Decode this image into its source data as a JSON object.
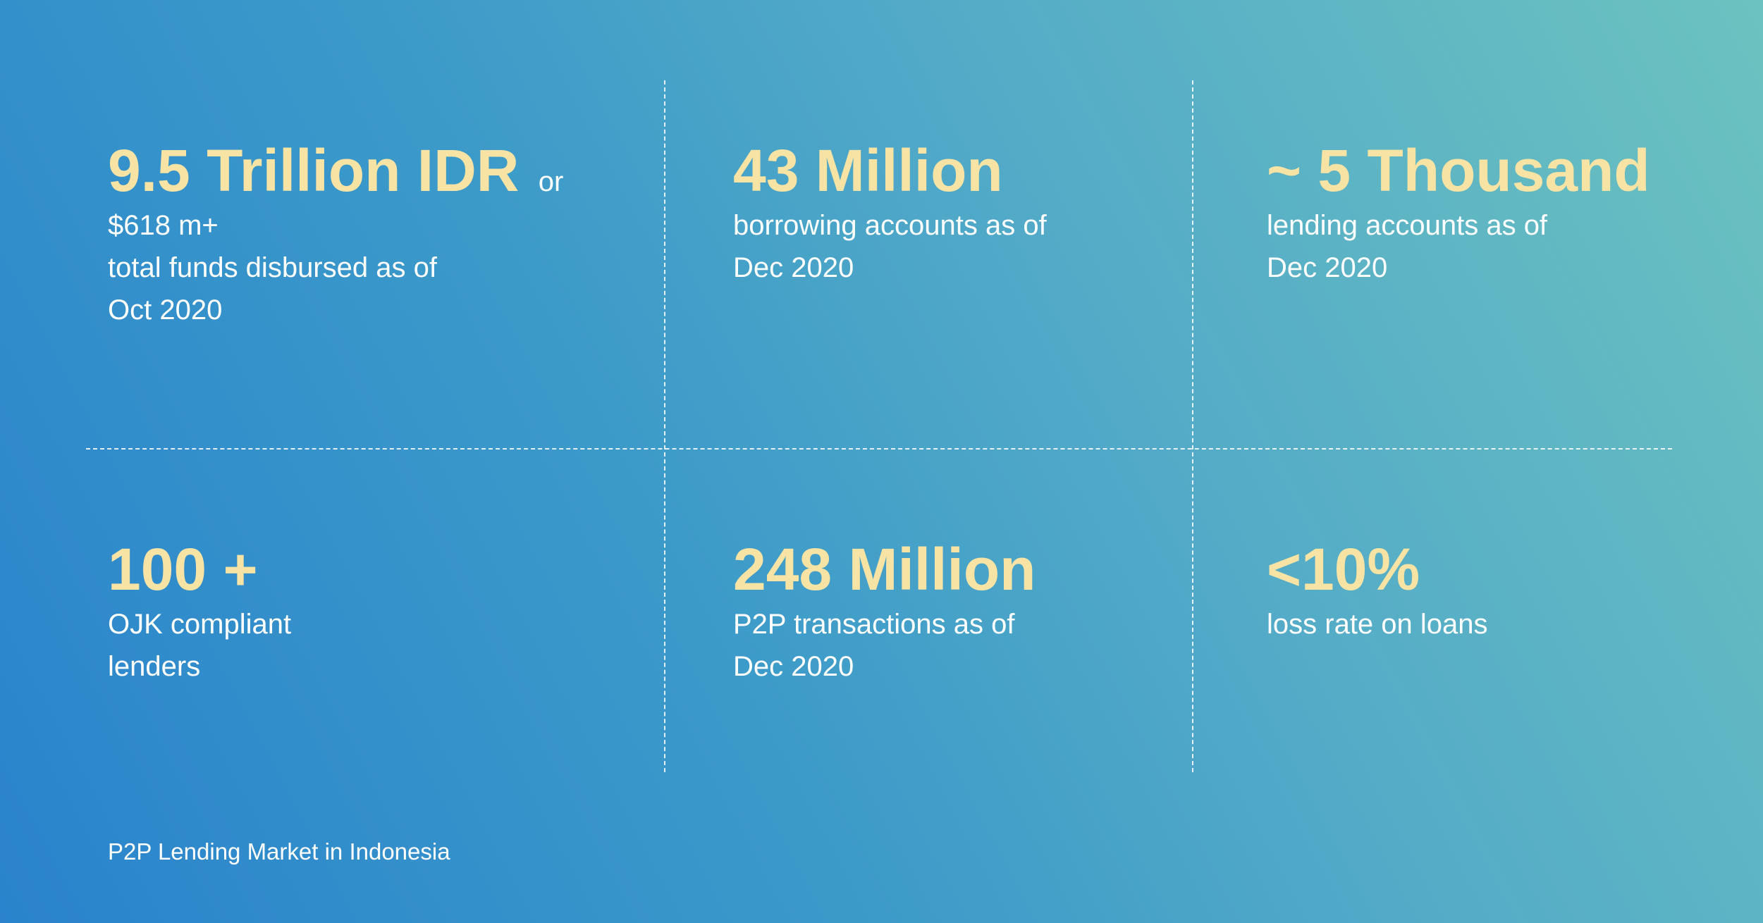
{
  "stats": [
    {
      "headline": "9.5 Trillion IDR",
      "connector": "or",
      "lines": [
        "$618 m+",
        "total funds disbursed as of",
        "Oct 2020"
      ]
    },
    {
      "headline": "43 Million",
      "lines": [
        "borrowing accounts as of",
        "Dec 2020"
      ]
    },
    {
      "headline": "~ 5 Thousand",
      "lines": [
        "lending accounts as of",
        "Dec 2020"
      ]
    },
    {
      "headline": "100 +",
      "lines": [
        "OJK compliant",
        "lenders"
      ]
    },
    {
      "headline": "248 Million",
      "lines": [
        "P2P transactions as of",
        "Dec 2020"
      ]
    },
    {
      "headline": "<10%",
      "lines": [
        "loss rate on loans"
      ]
    }
  ],
  "footer": "P2P Lending Market in Indonesia",
  "colors": {
    "headline": "#f7e3a3",
    "text": "#ffffff",
    "gradient_start": "#2a83cc",
    "gradient_end": "#6cc2bf"
  }
}
